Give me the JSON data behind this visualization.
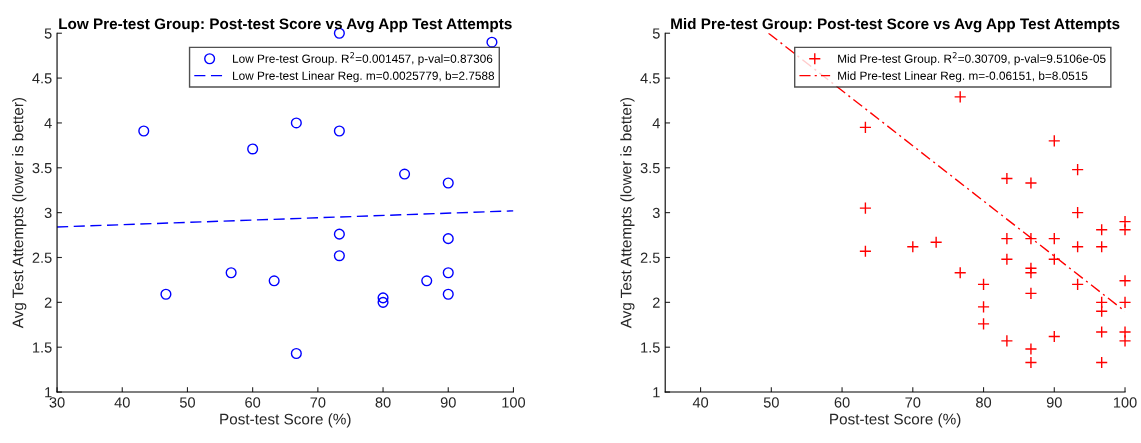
{
  "chart_data": [
    {
      "type": "scatter",
      "title": "Low Pre-test Group: Post-test Score vs Avg App Test Attempts",
      "xlabel": "Post-test Score (%)",
      "ylabel": "Avg Test Attempts (lower is better)",
      "xlim": [
        30,
        100
      ],
      "ylim": [
        1,
        5
      ],
      "xticks": [
        30,
        40,
        50,
        60,
        70,
        80,
        90,
        100
      ],
      "yticks": [
        1,
        1.5,
        2,
        2.5,
        3,
        3.5,
        4,
        4.5,
        5
      ],
      "grid": false,
      "legend": "top right",
      "series": [
        {
          "name": "Low Pre-test Group. R$^{2}$=0.001457, p-val=0.87306",
          "marker": "circle",
          "color": "#0000ff",
          "x": [
            43.3,
            46.7,
            56.7,
            60,
            63.3,
            66.7,
            66.7,
            73.3,
            73.3,
            73.3,
            73.3,
            80,
            80,
            83.3,
            86.7,
            90,
            90,
            90,
            90,
            96.7
          ],
          "values": [
            3.91,
            2.09,
            2.33,
            3.71,
            2.24,
            4.0,
            1.43,
            5.0,
            3.91,
            2.76,
            2.52,
            2.05,
            2.0,
            3.43,
            2.24,
            3.33,
            2.71,
            2.33,
            2.09,
            4.9
          ]
        },
        {
          "name": "Low Pre-test Linear Reg. m=0.0025779, b=2.7588",
          "type": "line",
          "line_style": "dashed",
          "color": "#0000ff",
          "x": [
            30,
            100
          ],
          "values": [
            2.84,
            3.02
          ]
        }
      ]
    },
    {
      "type": "scatter",
      "title": "Mid Pre-test Group: Post-test Score vs Avg App Test Attempts",
      "xlabel": "Post-test Score (%)",
      "ylabel": "Avg Test Attempts (lower is better)",
      "xlim": [
        35,
        100
      ],
      "ylim": [
        1,
        5
      ],
      "xticks": [
        40,
        50,
        60,
        70,
        80,
        90,
        100
      ],
      "yticks": [
        1,
        1.5,
        2,
        2.5,
        3,
        3.5,
        4,
        4.5,
        5
      ],
      "grid": false,
      "legend": "top right",
      "series": [
        {
          "name": "Mid Pre-test Group. R$^{2}$=0.30709, p-val=9.5106e-05",
          "marker": "cross",
          "color": "#ff0000",
          "x": [
            63.3,
            63.3,
            63.3,
            70,
            73.3,
            76.7,
            76.7,
            80,
            80,
            80,
            83.3,
            83.3,
            83.3,
            83.3,
            86.7,
            86.7,
            86.7,
            86.7,
            86.7,
            86.7,
            86.7,
            90,
            90,
            90,
            90,
            93.3,
            93.3,
            93.3,
            93.3,
            96.7,
            96.7,
            96.7,
            96.7,
            96.7,
            96.7,
            100,
            100,
            100,
            100,
            100,
            100
          ],
          "values": [
            3.95,
            3.05,
            2.57,
            2.62,
            2.67,
            4.29,
            2.33,
            2.2,
            1.95,
            1.76,
            3.38,
            2.71,
            2.48,
            1.57,
            3.33,
            2.71,
            2.38,
            2.33,
            2.1,
            1.48,
            1.33,
            3.8,
            2.71,
            2.48,
            1.62,
            3.48,
            3.0,
            2.62,
            2.2,
            2.81,
            2.62,
            2.0,
            1.9,
            1.67,
            1.33,
            2.9,
            2.81,
            2.24,
            2.0,
            1.67,
            1.57
          ]
        },
        {
          "name": "Mid Pre-test Linear Reg. m=-0.06151, b=8.0515",
          "type": "line",
          "line_style": "dashdot",
          "color": "#ff0000",
          "x": [
            49.6,
            100
          ],
          "values": [
            5.0,
            1.9
          ]
        }
      ]
    }
  ]
}
